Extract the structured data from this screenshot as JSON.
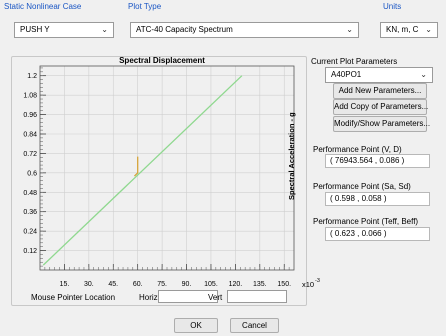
{
  "static_case": {
    "label": "Static Nonlinear Case",
    "value": "PUSH Y"
  },
  "plot_type": {
    "label": "Plot Type",
    "value": "ATC-40 Capacity Spectrum"
  },
  "units": {
    "label": "Units",
    "value": "KN, m, C"
  },
  "chart": {
    "title": "Spectral Displacement",
    "ylabel": "Spectral Acceleration - g",
    "x_multiplier": "x10",
    "x_multiplier_exp": "-3"
  },
  "chart_data": {
    "type": "line",
    "title": "Spectral Displacement",
    "ylabel": "Spectral Acceleration - g",
    "xlabel": "",
    "x_ticks": [
      15,
      30,
      45,
      60,
      75,
      90,
      105,
      120,
      135,
      150
    ],
    "x_tick_labels": [
      "15.",
      "30.",
      "45.",
      "60.",
      "75.",
      "90.",
      "105.",
      "120.",
      "135.",
      "150."
    ],
    "y_ticks": [
      0.12,
      0.24,
      0.36,
      0.48,
      0.6,
      0.72,
      0.84,
      0.96,
      1.08,
      1.2
    ],
    "y_tick_labels": [
      "0.12",
      "0.24",
      "0.36",
      "0.48",
      "0.6",
      "0.72",
      "0.84",
      "0.96",
      "1.08",
      "1.2"
    ],
    "xlim": [
      0,
      156
    ],
    "ylim": [
      0,
      1.26
    ],
    "grid": true,
    "series": [
      {
        "color": "#8fd88f",
        "x": [
          2,
          124
        ],
        "y": [
          0.03,
          1.2
        ]
      },
      {
        "color": "#d6a43a",
        "x": [
          58,
          60,
          60
        ],
        "y": [
          0.58,
          0.6,
          0.7
        ]
      }
    ]
  },
  "mouse": {
    "location_label": "Mouse Pointer Location",
    "horiz_label": "Horiz",
    "vert_label": "Vert"
  },
  "params": {
    "label": "Current Plot Parameters",
    "value": "A40PO1",
    "add_new": "Add New Parameters...",
    "add_copy": "Add Copy of Parameters...",
    "modify": "Modify/Show Parameters..."
  },
  "performance": {
    "vd_label": "Performance Point (V, D)",
    "vd_value": "( 76943.564 , 0.086 )",
    "sasd_label": "Performance Point (Sa, Sd)",
    "sasd_value": "( 0.598 , 0.058 )",
    "teff_label": "Performance Point (Teff, Beff)",
    "teff_value": "( 0.623 , 0.066 )"
  },
  "buttons": {
    "ok": "OK",
    "cancel": "Cancel"
  }
}
